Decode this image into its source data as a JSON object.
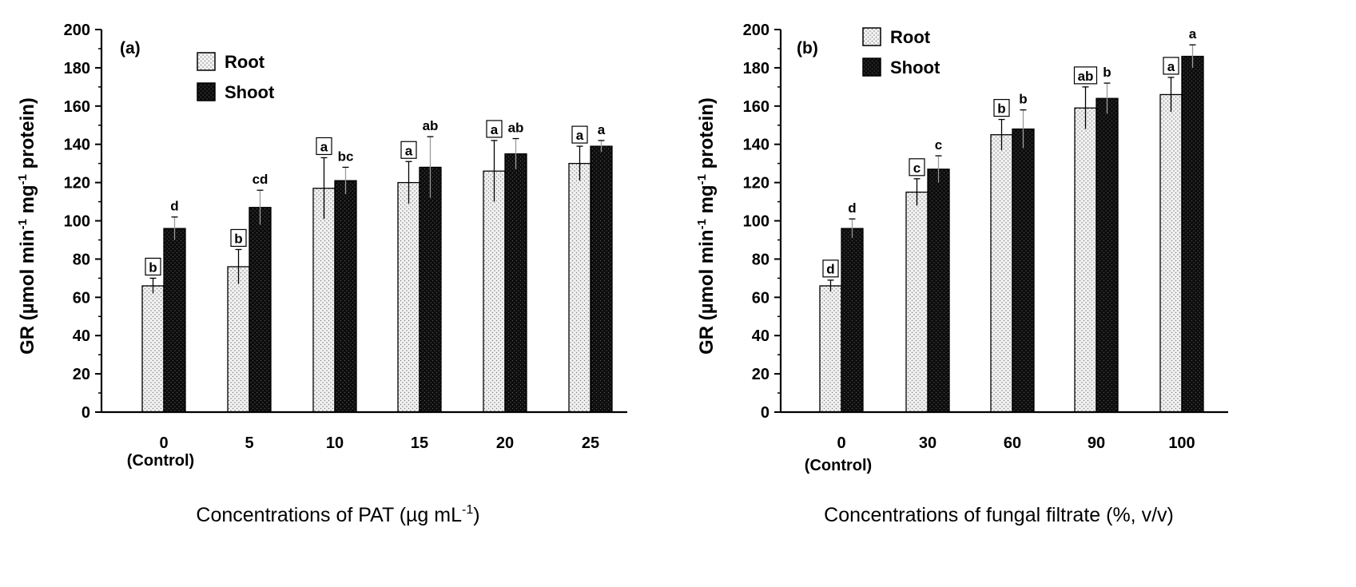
{
  "legend": {
    "root_label": "Root",
    "shoot_label": "Shoot"
  },
  "colors": {
    "root_fill": "#f1f1f1",
    "root_dot": "#7a7a7a",
    "shoot_fill": "#0d0d0d",
    "shoot_dot": "#5a5a5a",
    "axis": "#000000"
  },
  "chart_data": [
    {
      "type": "bar",
      "panel": "(a)",
      "categories": [
        "0",
        "5",
        "10",
        "15",
        "20",
        "25"
      ],
      "category_sublabels": [
        "(Control)",
        "",
        "",
        "",
        "",
        ""
      ],
      "xlabel": "Concentrations of PAT (µg mL",
      "xlabel_sup": "-1",
      "xlabel_tail": ")",
      "ylabel": "GR (µmol min-1 mg-1 protein)",
      "ylim": [
        0,
        200
      ],
      "yticks": [
        0,
        20,
        40,
        60,
        80,
        100,
        120,
        140,
        160,
        180,
        200
      ],
      "legend_position": "top-left",
      "series": [
        {
          "name": "Root",
          "values": [
            66,
            76,
            117,
            120,
            126,
            130
          ],
          "errors": [
            4,
            9,
            16,
            11,
            16,
            9
          ],
          "letters": [
            "b",
            "b",
            "a",
            "a",
            "a",
            "a"
          ],
          "boxed_letters": true
        },
        {
          "name": "Shoot",
          "values": [
            96,
            107,
            121,
            128,
            135,
            139
          ],
          "errors": [
            6,
            9,
            7,
            16,
            8,
            3
          ],
          "letters": [
            "d",
            "cd",
            "bc",
            "ab",
            "ab",
            "a"
          ],
          "boxed_letters": false
        }
      ]
    },
    {
      "type": "bar",
      "panel": "(b)",
      "categories": [
        "0",
        "30",
        "60",
        "90",
        "100"
      ],
      "category_sublabels": [
        "(Control)",
        "",
        "",
        "",
        ""
      ],
      "xlabel": "Concentrations of fungal filtrate (%, v/v)",
      "xlabel_sup": "",
      "xlabel_tail": "",
      "ylabel": "GR (µmol min-1 mg-1 protein)",
      "ylim": [
        0,
        200
      ],
      "yticks": [
        0,
        20,
        40,
        60,
        80,
        100,
        120,
        140,
        160,
        180,
        200
      ],
      "legend_position": "top-left",
      "series": [
        {
          "name": "Root",
          "values": [
            66,
            115,
            145,
            159,
            166
          ],
          "errors": [
            3,
            7,
            8,
            11,
            9
          ],
          "letters": [
            "d",
            "c",
            "b",
            "ab",
            "a"
          ],
          "boxed_letters": true
        },
        {
          "name": "Shoot",
          "values": [
            96,
            127,
            148,
            164,
            186
          ],
          "errors": [
            5,
            7,
            10,
            8,
            6
          ],
          "letters": [
            "d",
            "c",
            "b",
            "b",
            "a"
          ],
          "boxed_letters": false
        }
      ]
    }
  ]
}
